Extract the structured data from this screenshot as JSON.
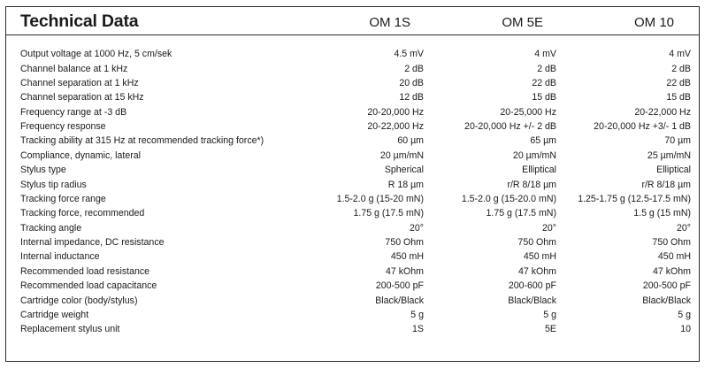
{
  "title": "Technical Data",
  "columns": [
    "OM 1S",
    "OM 5E",
    "OM 10"
  ],
  "rows": [
    {
      "label": "Output voltage at 1000 Hz, 5 cm/sek",
      "values": [
        "4.5 mV",
        "4 mV",
        "4 mV"
      ]
    },
    {
      "label": "Channel balance at 1 kHz",
      "values": [
        "2 dB",
        "2 dB",
        "2 dB"
      ]
    },
    {
      "label": "Channel separation at 1 kHz",
      "values": [
        "20 dB",
        "22 dB",
        "22 dB"
      ]
    },
    {
      "label": "Channel separation at 15 kHz",
      "values": [
        "12 dB",
        "15 dB",
        "15 dB"
      ]
    },
    {
      "label": "Frequency range at -3 dB",
      "values": [
        "20-20,000 Hz",
        "20-25,000 Hz",
        "20-22,000 Hz"
      ]
    },
    {
      "label": "Frequency response",
      "values": [
        "20-22,000 Hz",
        "20-20,000 Hz +/- 2 dB",
        "20-20,000 Hz +3/- 1 dB"
      ]
    },
    {
      "label": "Tracking ability at 315 Hz at recommended tracking force*)",
      "values": [
        "60 µm",
        "65 µm",
        "70 µm"
      ]
    },
    {
      "label": "Compliance, dynamic, lateral",
      "values": [
        "20 µm/mN",
        "20 µm/mN",
        "25 µm/mN"
      ]
    },
    {
      "label": "Stylus type",
      "values": [
        "Spherical",
        "Elliptical",
        "Elliptical"
      ]
    },
    {
      "label": "Stylus tip radius",
      "values": [
        "R 18 µm",
        "r/R 8/18 µm",
        "r/R 8/18 µm"
      ]
    },
    {
      "label": "Tracking force range",
      "values": [
        "1.5-2.0 g (15-20 mN)",
        "1.5-2.0 g (15-20.0 mN)",
        "1.25-1.75 g (12.5-17.5 mN)"
      ]
    },
    {
      "label": "Tracking force, recommended",
      "values": [
        "1.75 g (17.5 mN)",
        "1.75 g (17.5 mN)",
        "1.5 g (15 mN)"
      ]
    },
    {
      "label": "Tracking angle",
      "values": [
        "20°",
        "20°",
        "20°"
      ]
    },
    {
      "label": "Internal impedance, DC resistance",
      "values": [
        "750 Ohm",
        "750 Ohm",
        "750 Ohm"
      ]
    },
    {
      "label": "Internal inductance",
      "values": [
        "450 mH",
        "450 mH",
        "450 mH"
      ]
    },
    {
      "label": "Recommended load resistance",
      "values": [
        "47 kOhm",
        "47 kOhm",
        "47 kOhm"
      ]
    },
    {
      "label": "Recommended load capacitance",
      "values": [
        "200-500 pF",
        "200-600 pF",
        "200-500 pF"
      ]
    },
    {
      "label": "Cartridge color (body/stylus)",
      "values": [
        "Black/Black",
        "Black/Black",
        "Black/Black"
      ]
    },
    {
      "label": "Cartridge weight",
      "values": [
        "5 g",
        "5 g",
        "5 g"
      ]
    },
    {
      "label": "Replacement stylus unit",
      "values": [
        "1S",
        "5E",
        "10"
      ]
    }
  ]
}
